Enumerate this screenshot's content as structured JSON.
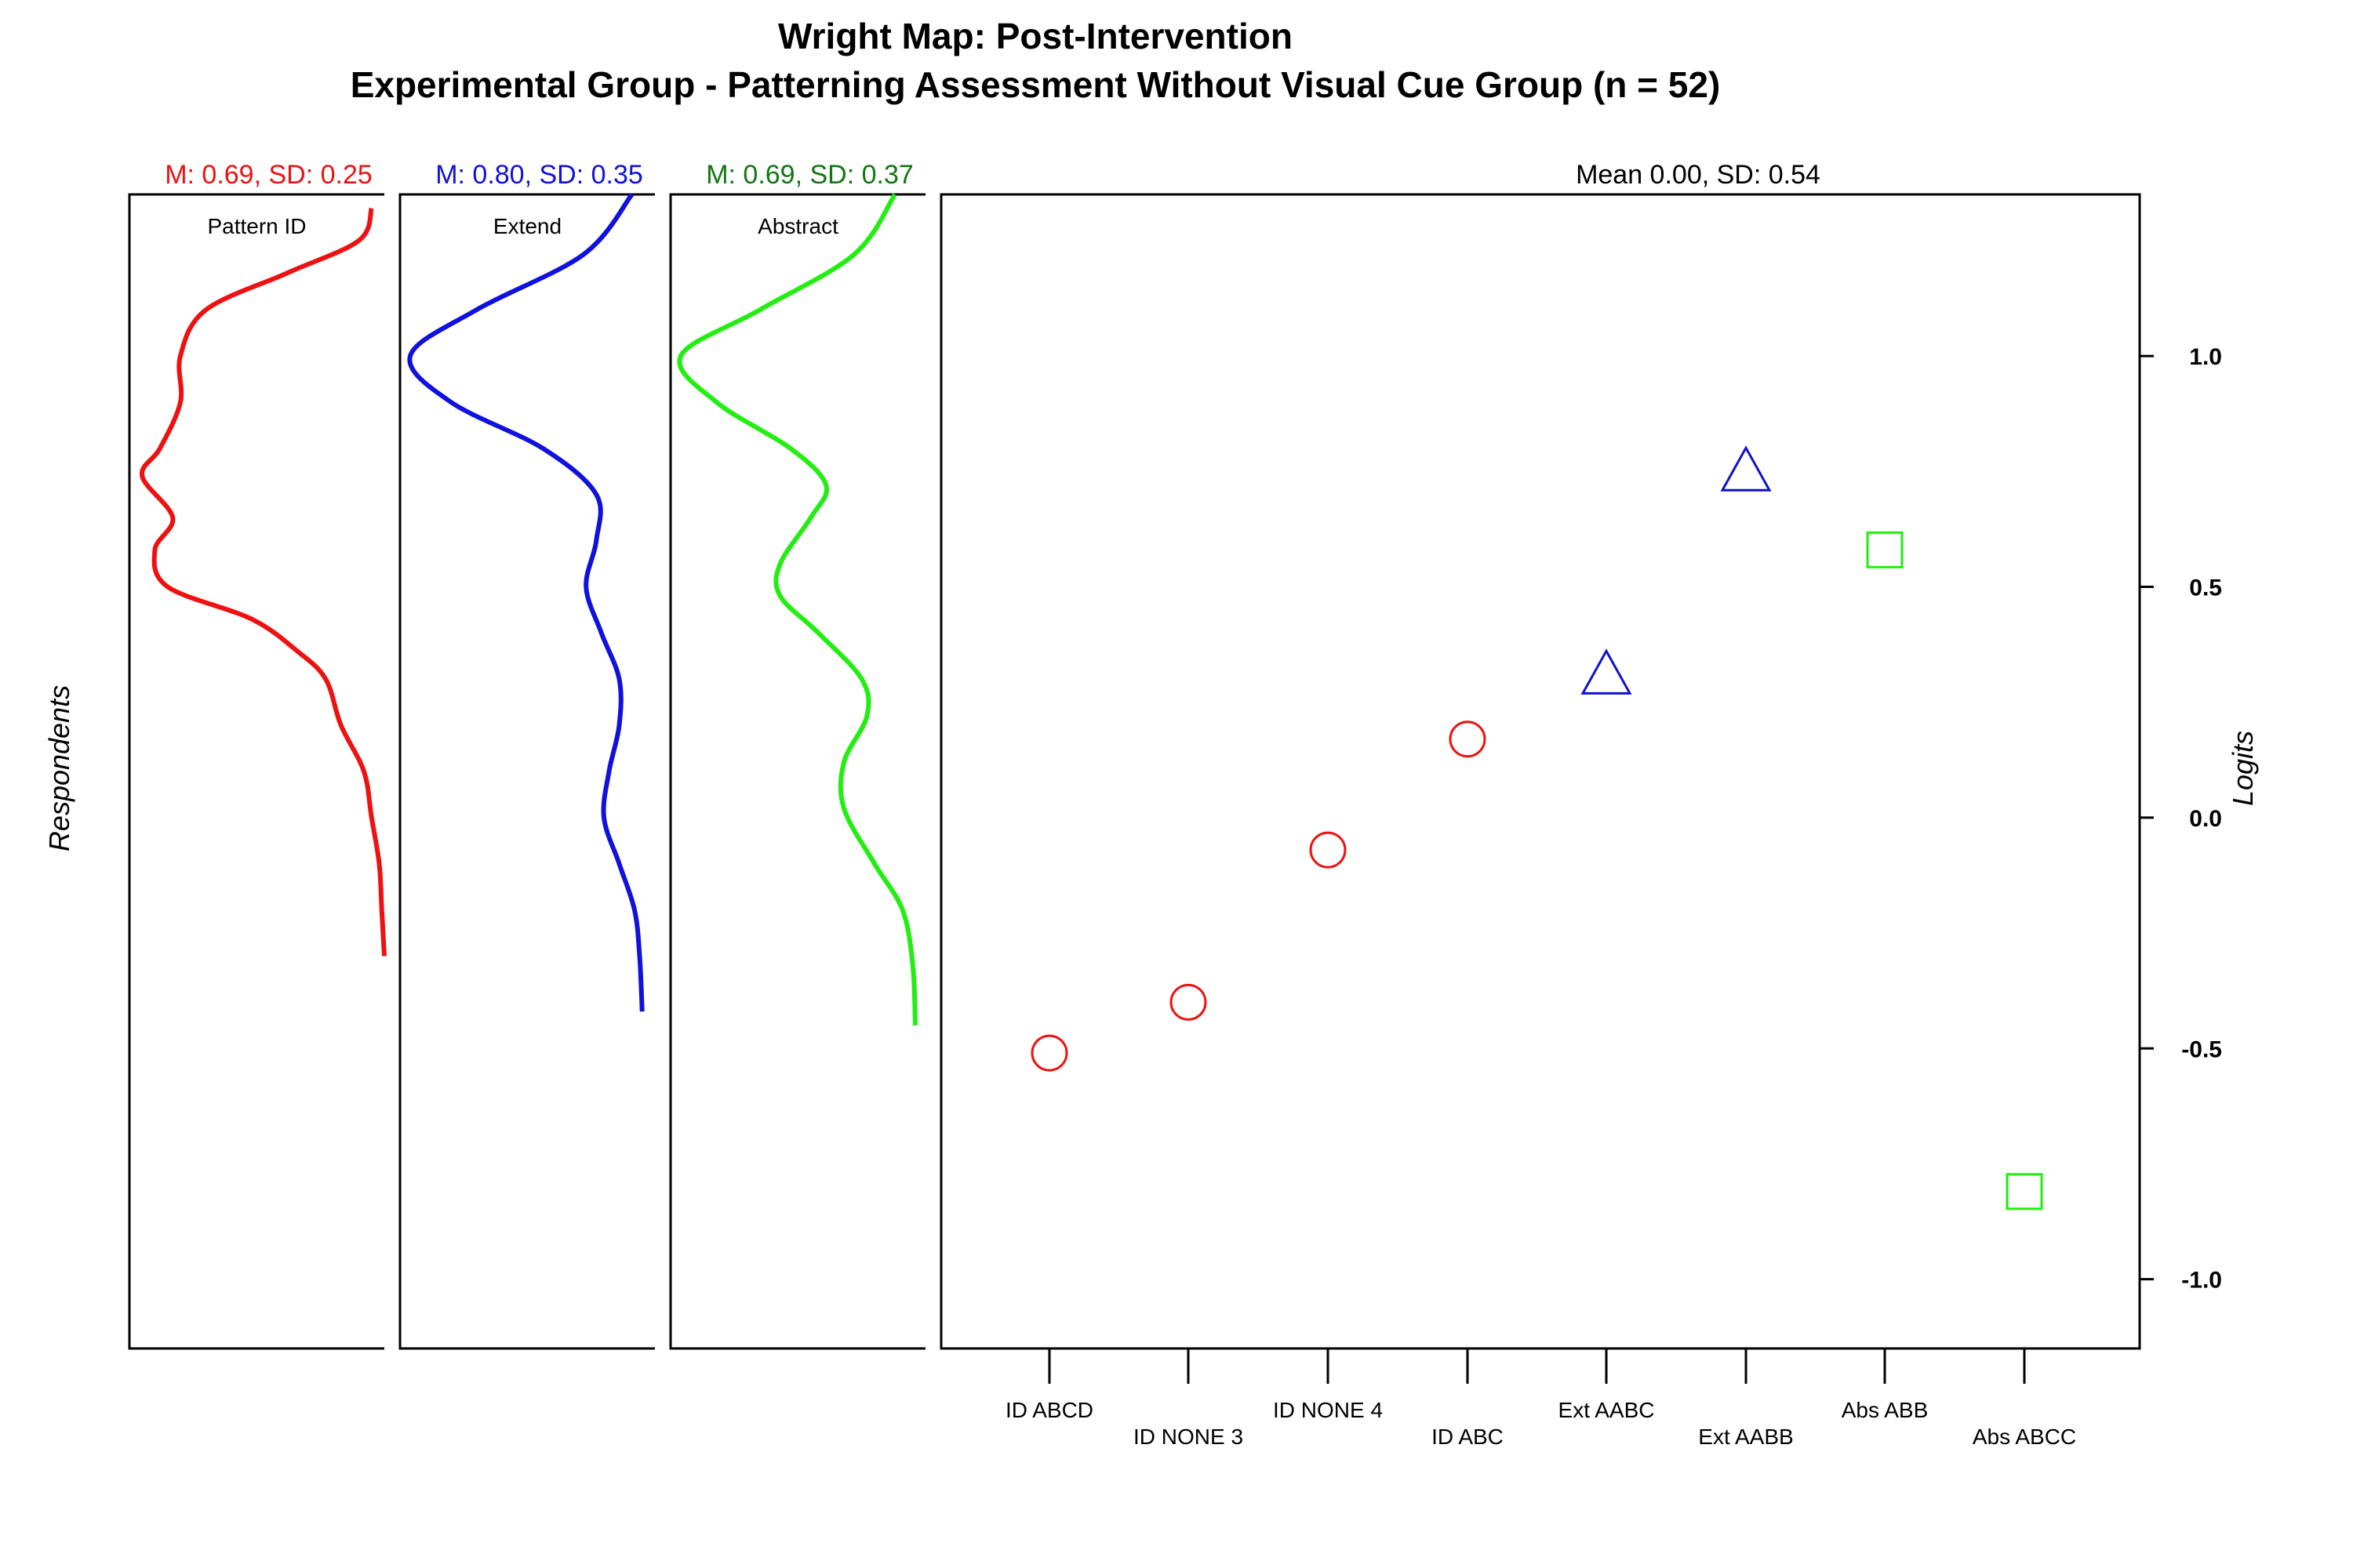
{
  "chart_data": {
    "type": "scatter",
    "title": "Wright Map: Post-Intervention",
    "subtitle": "Experimental Group - Patterning Assessment Without Visual Cue Group (n = 52)",
    "ylabel_left": "Respondents",
    "ylabel_right": "Logits",
    "ylim": [
      -1.15,
      1.35
    ],
    "yticks": [
      1.0,
      0.5,
      0.0,
      -0.5,
      -1.0
    ],
    "ytick_labels": [
      "1.0",
      "0.5",
      "0.0",
      "-0.5",
      "-1.0"
    ],
    "item_summary": "Mean 0.00, SD: 0.54",
    "density_panels": [
      {
        "name": "Pattern ID",
        "stats": "M: 0.69, SD: 0.25",
        "color": "#ee1111",
        "stat_color": "#ee1111",
        "curve": [
          [
            1.32,
            0.95
          ],
          [
            1.25,
            0.9
          ],
          [
            1.18,
            0.62
          ],
          [
            1.1,
            0.3
          ],
          [
            1.0,
            0.2
          ],
          [
            0.9,
            0.2
          ],
          [
            0.8,
            0.12
          ],
          [
            0.74,
            0.05
          ],
          [
            0.65,
            0.17
          ],
          [
            0.58,
            0.1
          ],
          [
            0.5,
            0.15
          ],
          [
            0.43,
            0.48
          ],
          [
            0.36,
            0.66
          ],
          [
            0.3,
            0.77
          ],
          [
            0.2,
            0.83
          ],
          [
            0.1,
            0.92
          ],
          [
            0.0,
            0.95
          ],
          [
            -0.1,
            0.98
          ],
          [
            -0.2,
            0.99
          ],
          [
            -0.3,
            1.0
          ]
        ]
      },
      {
        "name": "Extend",
        "stats": "M: 0.80, SD: 0.35",
        "color": "#1111dd",
        "stat_color": "#1111dd",
        "curve": [
          [
            1.35,
            0.91
          ],
          [
            1.22,
            0.72
          ],
          [
            1.1,
            0.3
          ],
          [
            1.0,
            0.04
          ],
          [
            0.9,
            0.2
          ],
          [
            0.8,
            0.56
          ],
          [
            0.7,
            0.77
          ],
          [
            0.6,
            0.77
          ],
          [
            0.5,
            0.73
          ],
          [
            0.4,
            0.79
          ],
          [
            0.3,
            0.86
          ],
          [
            0.2,
            0.86
          ],
          [
            0.1,
            0.82
          ],
          [
            0.0,
            0.8
          ],
          [
            -0.1,
            0.86
          ],
          [
            -0.2,
            0.92
          ],
          [
            -0.3,
            0.94
          ],
          [
            -0.42,
            0.95
          ]
        ]
      },
      {
        "name": "Abstract",
        "stats": "M: 0.69, SD: 0.37",
        "color": "#22ee11",
        "stat_color": "#117711",
        "curve": [
          [
            1.35,
            0.88
          ],
          [
            1.22,
            0.72
          ],
          [
            1.1,
            0.35
          ],
          [
            1.0,
            0.04
          ],
          [
            0.9,
            0.18
          ],
          [
            0.8,
            0.47
          ],
          [
            0.72,
            0.61
          ],
          [
            0.65,
            0.55
          ],
          [
            0.55,
            0.43
          ],
          [
            0.48,
            0.43
          ],
          [
            0.4,
            0.58
          ],
          [
            0.3,
            0.75
          ],
          [
            0.22,
            0.77
          ],
          [
            0.12,
            0.68
          ],
          [
            0.02,
            0.68
          ],
          [
            -0.1,
            0.8
          ],
          [
            -0.2,
            0.91
          ],
          [
            -0.32,
            0.95
          ],
          [
            -0.45,
            0.96
          ]
        ]
      }
    ],
    "items": [
      {
        "label": "ID ABCD",
        "value": -0.51,
        "shape": "circle",
        "color": "#ee1111",
        "row": 0
      },
      {
        "label": "ID NONE 3",
        "value": -0.4,
        "shape": "circle",
        "color": "#ee1111",
        "row": 1
      },
      {
        "label": "ID NONE 4",
        "value": -0.07,
        "shape": "circle",
        "color": "#ee1111",
        "row": 0
      },
      {
        "label": "ID ABC",
        "value": 0.17,
        "shape": "circle",
        "color": "#ee1111",
        "row": 1
      },
      {
        "label": "Ext AABC",
        "value": 0.31,
        "shape": "triangle",
        "color": "#1111cc",
        "row": 0
      },
      {
        "label": "Ext AABB",
        "value": 0.75,
        "shape": "triangle",
        "color": "#1111cc",
        "row": 1
      },
      {
        "label": "Abs ABB",
        "value": 0.58,
        "shape": "square",
        "color": "#22ee11",
        "row": 0
      },
      {
        "label": "Abs ABCC",
        "value": -0.81,
        "shape": "square",
        "color": "#22ee11",
        "row": 1
      }
    ]
  }
}
